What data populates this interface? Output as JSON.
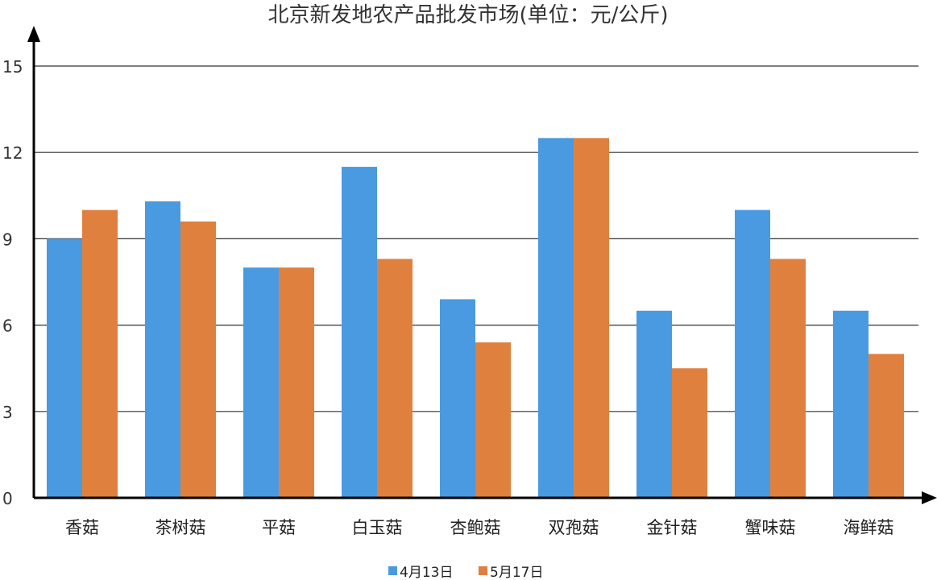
{
  "chart_data": {
    "type": "bar",
    "title": "北京新发地农产品批发市场(单位：元/公斤)",
    "xlabel": "",
    "ylabel": "",
    "categories": [
      "香菇",
      "茶树菇",
      "平菇",
      "白玉菇",
      "杏鲍菇",
      "双孢菇",
      "金针菇",
      "蟹味菇",
      "海鲜菇"
    ],
    "series": [
      {
        "name": "4月13日",
        "color": "#4a9ae1",
        "values": [
          9.0,
          10.3,
          8.0,
          11.5,
          6.9,
          12.5,
          6.5,
          10.0,
          6.5
        ]
      },
      {
        "name": "5月17日",
        "color": "#e0803e",
        "values": [
          10.0,
          9.6,
          8.0,
          8.3,
          5.4,
          12.5,
          4.5,
          8.3,
          5.0
        ]
      }
    ],
    "ylim": [
      0,
      15
    ],
    "yticks": [
      0,
      3,
      6,
      9,
      12,
      15
    ],
    "grid": true,
    "legend_position": "bottom-center"
  }
}
